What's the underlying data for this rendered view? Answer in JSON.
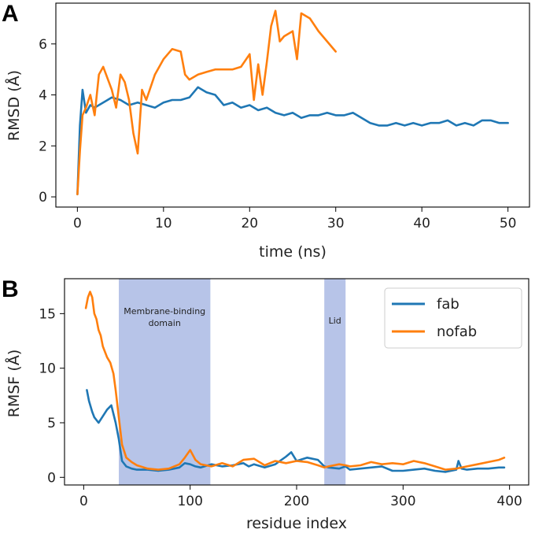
{
  "chart_data": [
    {
      "panel": "A",
      "type": "line",
      "title": "",
      "xlabel": "time (ns)",
      "ylabel": "RMSD (Å)",
      "xlim": [
        -2.5,
        52.5
      ],
      "ylim": [
        -0.4,
        7.6
      ],
      "xticks": [
        0,
        10,
        20,
        30,
        40,
        50
      ],
      "yticks": [
        0,
        2,
        4,
        6
      ],
      "legend": null,
      "series": [
        {
          "name": "fab",
          "color": "#1f77b4",
          "x": [
            0,
            0.3,
            0.6,
            1,
            1.5,
            2,
            3,
            4,
            5,
            6,
            7,
            8,
            9,
            10,
            11,
            12,
            13,
            14,
            15,
            16,
            17,
            18,
            19,
            20,
            21,
            22,
            23,
            24,
            25,
            26,
            27,
            28,
            29,
            30,
            31,
            32,
            33,
            34,
            35,
            36,
            37,
            38,
            39,
            40,
            41,
            42,
            43,
            44,
            45,
            46,
            47,
            48,
            49,
            50
          ],
          "y": [
            0.1,
            2.8,
            4.2,
            3.3,
            3.6,
            3.5,
            3.7,
            3.9,
            3.8,
            3.6,
            3.7,
            3.6,
            3.5,
            3.7,
            3.8,
            3.8,
            3.9,
            4.3,
            4.1,
            4.0,
            3.6,
            3.7,
            3.5,
            3.6,
            3.4,
            3.5,
            3.3,
            3.2,
            3.3,
            3.1,
            3.2,
            3.2,
            3.3,
            3.2,
            3.2,
            3.3,
            3.1,
            2.9,
            2.8,
            2.8,
            2.9,
            2.8,
            2.9,
            2.8,
            2.9,
            2.9,
            3.0,
            2.8,
            2.9,
            2.8,
            3.0,
            3.0,
            2.9,
            2.9
          ]
        },
        {
          "name": "nofab",
          "color": "#ff7f0e",
          "x": [
            0,
            0.3,
            0.6,
            1,
            1.5,
            2,
            2.5,
            3,
            4,
            4.5,
            5,
            5.5,
            6,
            6.5,
            7,
            7.5,
            8,
            9,
            10,
            11,
            12,
            12.5,
            13,
            14,
            15,
            16,
            17,
            18,
            19,
            20,
            20.5,
            21,
            21.5,
            22,
            22.5,
            23,
            23.5,
            24,
            25,
            25.5,
            26,
            27,
            28,
            29,
            30
          ],
          "y": [
            0.1,
            1.8,
            3.2,
            3.5,
            4.0,
            3.2,
            4.8,
            5.1,
            4.2,
            3.5,
            4.8,
            4.5,
            3.8,
            2.5,
            1.7,
            4.2,
            3.8,
            4.8,
            5.4,
            5.8,
            5.7,
            4.8,
            4.6,
            4.8,
            4.9,
            5.0,
            5.0,
            5.0,
            5.1,
            5.6,
            3.8,
            5.2,
            4.0,
            5.3,
            6.7,
            7.3,
            6.1,
            6.3,
            6.5,
            5.4,
            7.2,
            7.0,
            6.5,
            6.1,
            5.7
          ]
        }
      ]
    },
    {
      "panel": "B",
      "type": "line",
      "title": "",
      "xlabel": "residue index",
      "ylabel": "RMSF (Å)",
      "xlim": [
        -18,
        418
      ],
      "ylim": [
        -0.7,
        18.2
      ],
      "xticks": [
        0,
        100,
        200,
        300,
        400
      ],
      "yticks": [
        0,
        5,
        10,
        15
      ],
      "legend": "top-right",
      "regions": [
        {
          "label": "Membrane-binding domain",
          "line1": "Membrane-binding",
          "line2": "domain",
          "start": 33,
          "end": 119,
          "color": "#b7c4e8"
        },
        {
          "label": "Lid",
          "start": 226,
          "end": 246,
          "color": "#b7c4e8"
        }
      ],
      "series": [
        {
          "name": "fab",
          "color": "#1f77b4",
          "x": [
            3,
            5,
            8,
            10,
            14,
            18,
            22,
            26,
            30,
            33,
            36,
            40,
            45,
            50,
            60,
            70,
            80,
            90,
            95,
            100,
            105,
            110,
            120,
            130,
            140,
            150,
            155,
            160,
            170,
            180,
            190,
            195,
            200,
            210,
            220,
            226,
            230,
            240,
            246,
            250,
            260,
            270,
            280,
            290,
            300,
            310,
            320,
            330,
            340,
            350,
            352,
            355,
            360,
            370,
            380,
            390,
            395
          ],
          "y": [
            8.0,
            7.0,
            6.0,
            5.5,
            5.0,
            5.6,
            6.2,
            6.6,
            5.0,
            3.5,
            1.5,
            1.0,
            0.8,
            0.7,
            0.7,
            0.6,
            0.7,
            0.9,
            1.3,
            1.2,
            1.0,
            0.9,
            1.2,
            1.0,
            1.1,
            1.3,
            1.0,
            1.2,
            0.9,
            1.2,
            1.9,
            2.3,
            1.5,
            1.8,
            1.6,
            1.0,
            0.9,
            0.8,
            1.0,
            0.7,
            0.8,
            0.9,
            1.0,
            0.6,
            0.6,
            0.7,
            0.8,
            0.6,
            0.5,
            0.7,
            1.5,
            0.8,
            0.7,
            0.8,
            0.8,
            0.9,
            0.9
          ]
        },
        {
          "name": "nofab",
          "color": "#ff7f0e",
          "x": [
            2,
            4,
            6,
            8,
            10,
            12,
            14,
            16,
            18,
            20,
            22,
            25,
            28,
            30,
            33,
            36,
            40,
            45,
            50,
            60,
            70,
            80,
            90,
            95,
            100,
            105,
            110,
            120,
            130,
            140,
            150,
            160,
            170,
            180,
            190,
            200,
            210,
            220,
            226,
            230,
            240,
            246,
            250,
            260,
            270,
            280,
            290,
            300,
            310,
            320,
            330,
            340,
            350,
            360,
            370,
            380,
            390,
            395
          ],
          "y": [
            15.5,
            16.5,
            17.0,
            16.5,
            15.0,
            14.5,
            13.5,
            13.0,
            12.0,
            11.5,
            11.0,
            10.5,
            9.5,
            8.0,
            5.5,
            3.0,
            1.8,
            1.4,
            1.1,
            0.8,
            0.7,
            0.8,
            1.2,
            1.8,
            2.5,
            1.6,
            1.2,
            1.0,
            1.3,
            1.0,
            1.6,
            1.7,
            1.1,
            1.5,
            1.3,
            1.5,
            1.4,
            1.1,
            0.9,
            1.0,
            1.2,
            1.1,
            1.0,
            1.1,
            1.4,
            1.2,
            1.3,
            1.2,
            1.5,
            1.3,
            1.0,
            0.7,
            0.8,
            1.0,
            1.2,
            1.4,
            1.6,
            1.8
          ]
        }
      ]
    }
  ]
}
